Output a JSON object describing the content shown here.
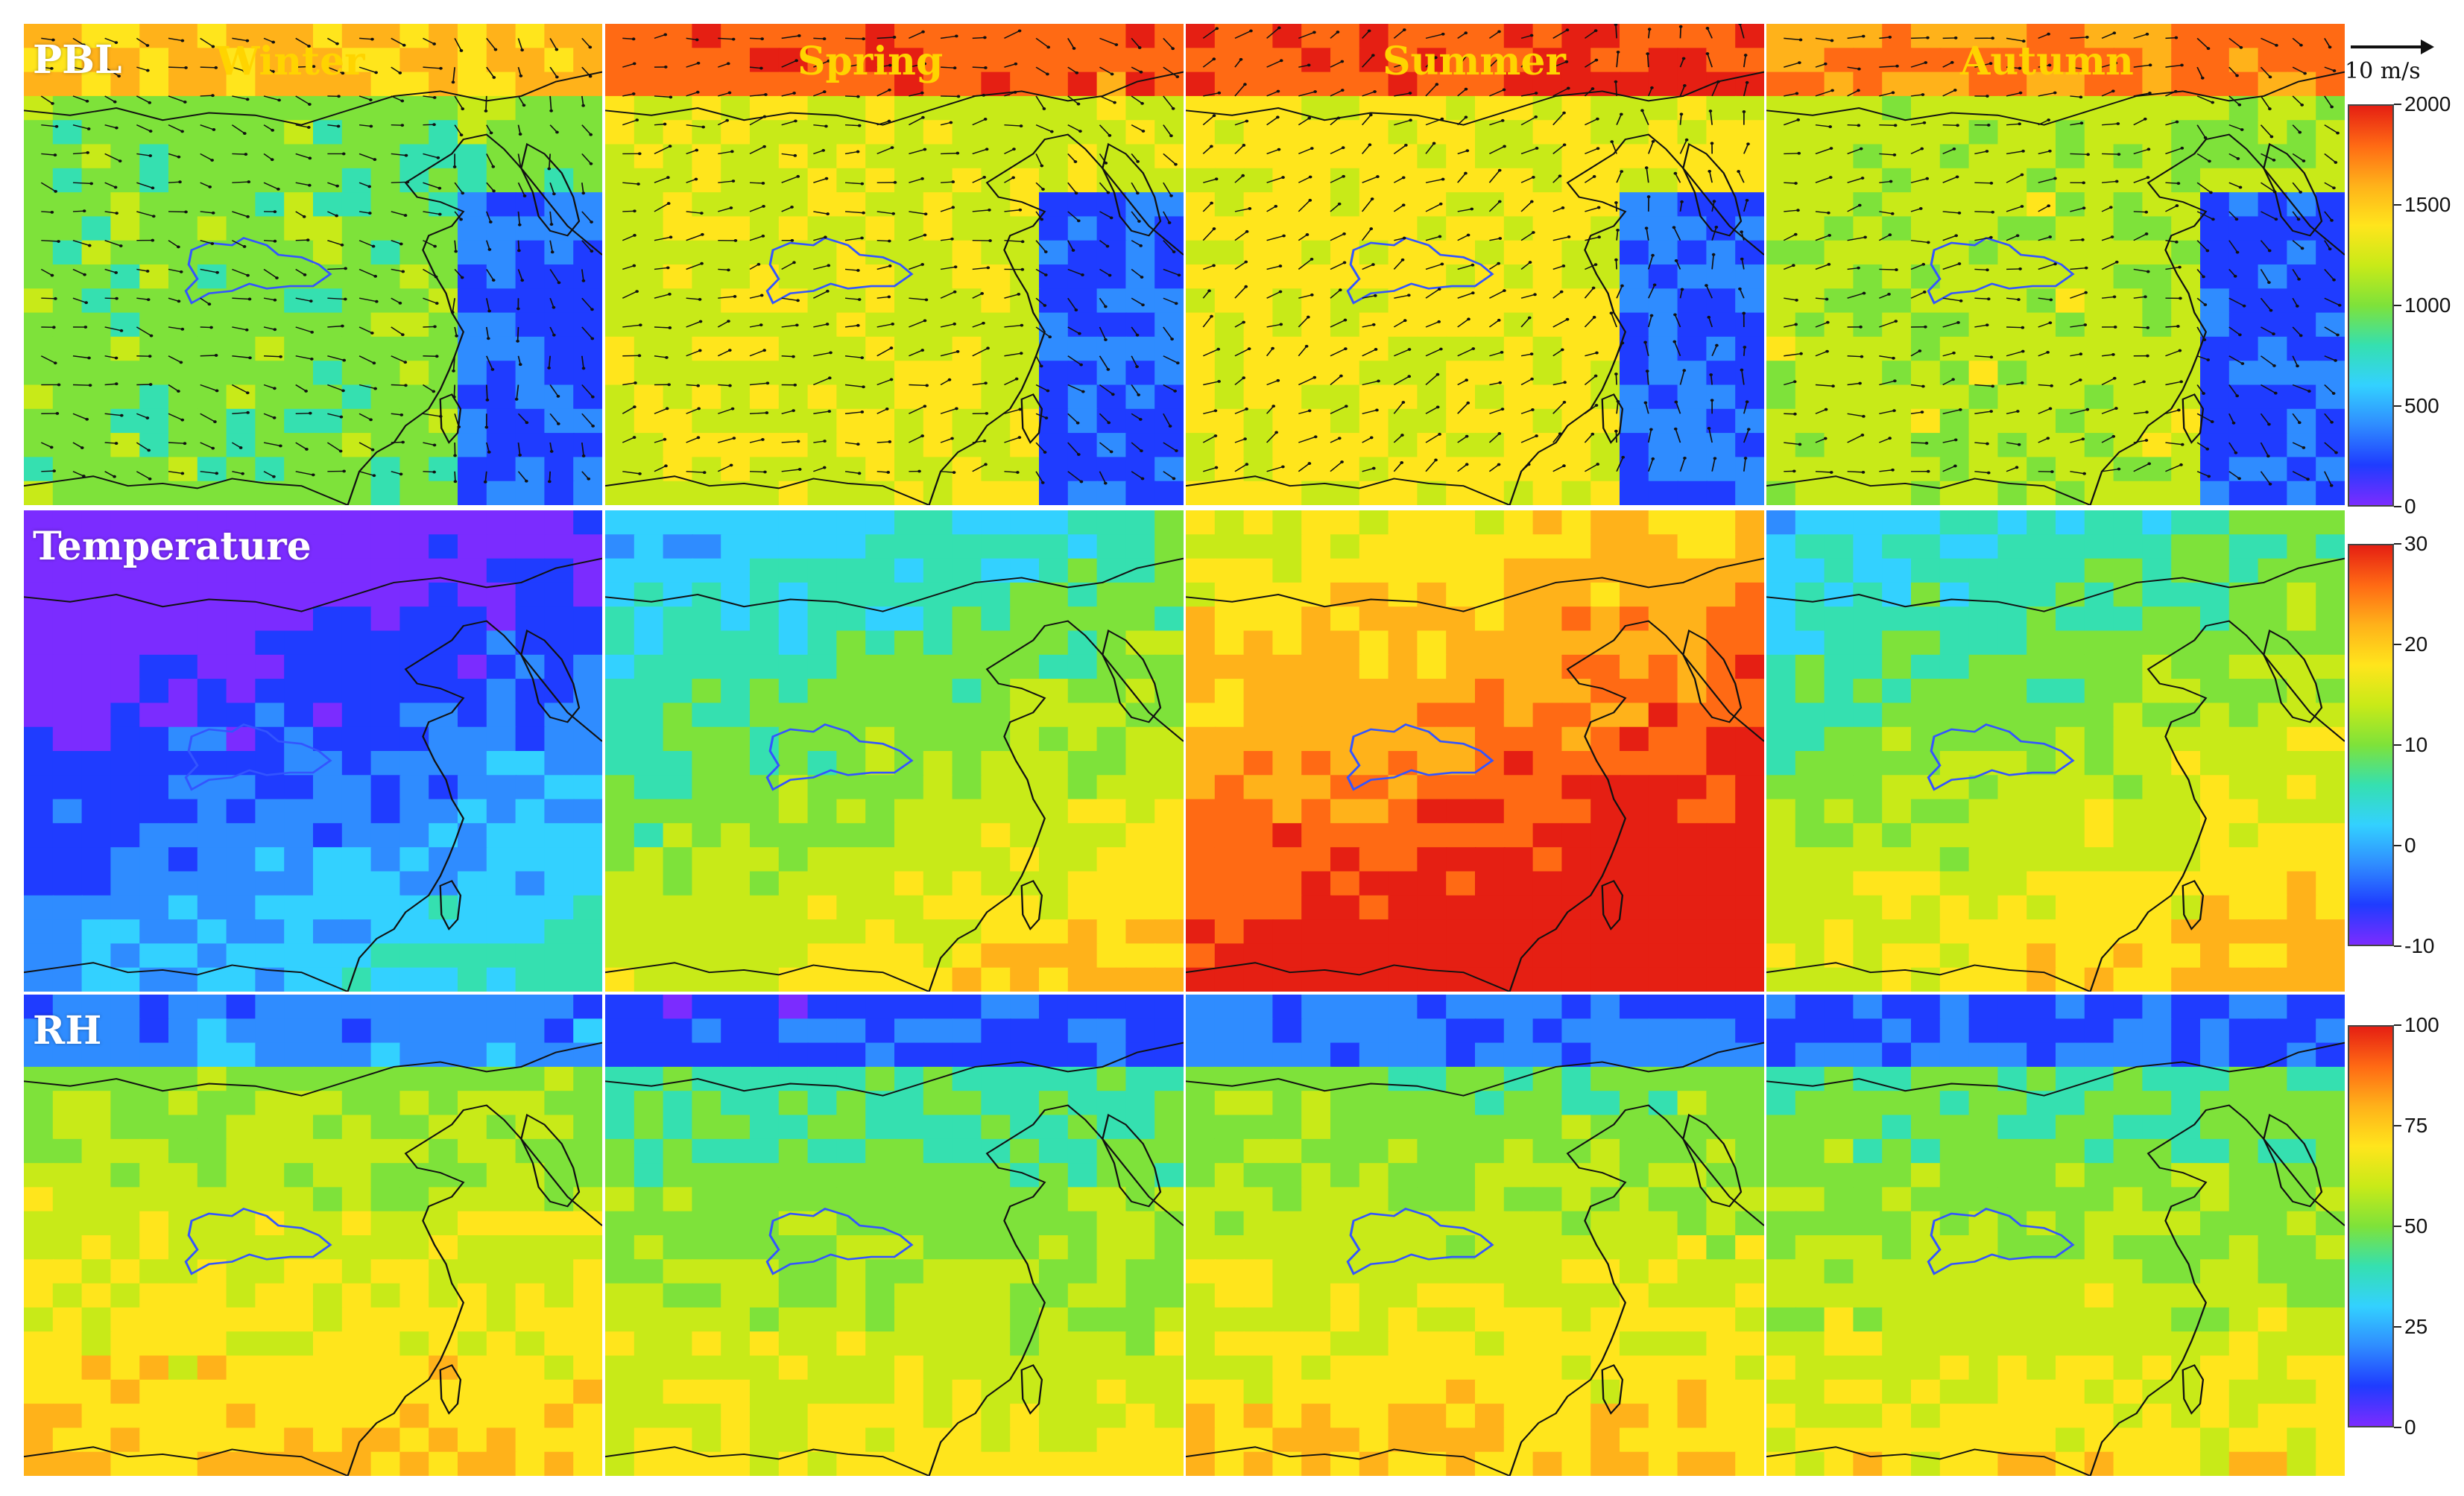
{
  "rows": [
    {
      "id": "pbl",
      "label": "PBL",
      "unit_ticks": [
        "2000",
        "1500",
        "1000",
        "500",
        "0"
      ]
    },
    {
      "id": "temperature",
      "label": "Temperature",
      "unit_ticks": [
        "30",
        "20",
        "10",
        "0",
        "-10"
      ]
    },
    {
      "id": "rh",
      "label": "RH",
      "unit_ticks": [
        "100",
        "75",
        "50",
        "25",
        "0"
      ]
    }
  ],
  "seasons": [
    "Winter",
    "Spring",
    "Summer",
    "Autumn"
  ],
  "wind_reference": {
    "label": "10 m/s"
  },
  "colors": {
    "scale": [
      "#7b2cff",
      "#1f3cff",
      "#2f8cff",
      "#33d1ff",
      "#35e0b0",
      "#7ee23a",
      "#c8ea18",
      "#ffe51c",
      "#ffb21a",
      "#ff6a14",
      "#e51f13"
    ],
    "coastline": "#111111",
    "hubei_outline": "#3355ff"
  },
  "maps": {
    "pbl": [
      0.5,
      0.62,
      0.66,
      0.58
    ],
    "temperature": [
      0.18,
      0.52,
      0.86,
      0.56
    ],
    "rh": [
      0.58,
      0.5,
      0.56,
      0.52
    ]
  }
}
